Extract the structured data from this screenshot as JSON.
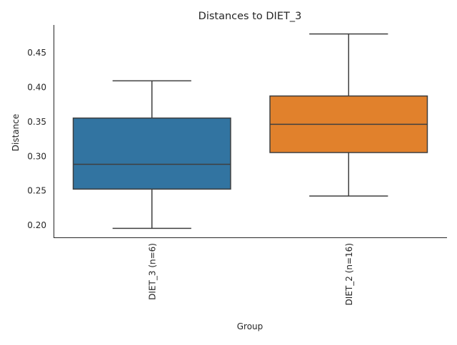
{
  "chart_data": {
    "type": "box",
    "title": "Distances to DIET_3",
    "xlabel": "Group",
    "ylabel": "Distance",
    "ylim": [
      0.182,
      0.49
    ],
    "yticks": [
      0.2,
      0.25,
      0.3,
      0.35,
      0.4,
      0.45
    ],
    "ytick_labels": [
      "0.20",
      "0.25",
      "0.30",
      "0.35",
      "0.40",
      "0.45"
    ],
    "grid": false,
    "categories": [
      "DIET_3 (n=6)",
      "DIET_2 (n=16)"
    ],
    "boxes": [
      {
        "category": "DIET_3 (n=6)",
        "whisker_low": 0.195,
        "q1": 0.252,
        "median": 0.288,
        "q3": 0.355,
        "whisker_high": 0.409,
        "color": "#3274a1"
      },
      {
        "category": "DIET_2 (n=16)",
        "whisker_low": 0.242,
        "q1": 0.305,
        "median": 0.346,
        "q3": 0.387,
        "whisker_high": 0.477,
        "color": "#e1812c"
      }
    ],
    "line_color": "#3f3f3f"
  }
}
